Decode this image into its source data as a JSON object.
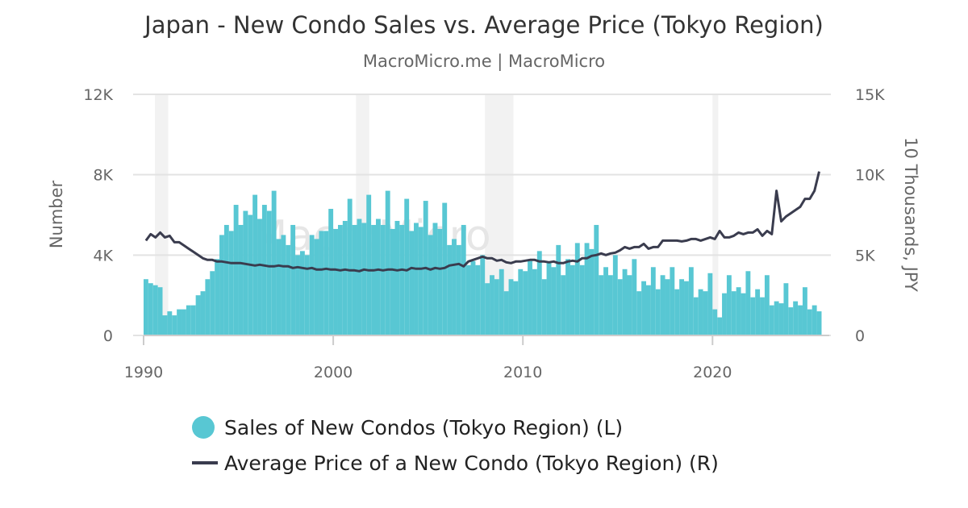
{
  "title": "Japan - New Condo Sales vs. Average Price (Tokyo Region)",
  "subtitle": "MacroMicro.me | MacroMicro",
  "watermark": "MacroMicro",
  "chart_data": {
    "type": "bar+line",
    "title": "Japan - New Condo Sales vs. Average Price (Tokyo Region)",
    "ylabel_left": "Number",
    "ylabel_right": "10 Thousands, JPY",
    "ylim_left": [
      0,
      12000
    ],
    "ylim_right": [
      0,
      15000
    ],
    "yticks_left": [
      "0",
      "4K",
      "8K",
      "12K"
    ],
    "yticks_right": [
      "0",
      "5K",
      "10K",
      "15K"
    ],
    "xlim": [
      1990,
      2025.9
    ],
    "xticks": [
      "1990",
      "2000",
      "2010",
      "2020"
    ],
    "grid": true,
    "legend": "bottom",
    "shaded_periods": [
      [
        1990.6,
        1991.3
      ],
      [
        2001.2,
        2001.9
      ],
      [
        2008.0,
        2009.5
      ],
      [
        2020.0,
        2020.3
      ]
    ],
    "x_start": "1990-Q1",
    "x_frequency": "quarterly",
    "series": [
      {
        "name": "Sales of New Condos (Tokyo Region) (L)",
        "type": "bar",
        "axis": "left",
        "color": "#58c7d3",
        "values": [
          2800,
          2600,
          2500,
          2400,
          1000,
          1200,
          1000,
          1300,
          1300,
          1500,
          1500,
          2000,
          2200,
          2800,
          3200,
          3800,
          5000,
          5500,
          5200,
          6500,
          5500,
          6200,
          6000,
          7000,
          5800,
          6500,
          6200,
          7200,
          4800,
          5000,
          4500,
          5500,
          4000,
          4200,
          4000,
          5000,
          4800,
          5200,
          5200,
          6300,
          5300,
          5500,
          5700,
          6800,
          5500,
          5800,
          5600,
          7000,
          5500,
          5800,
          5500,
          7200,
          5300,
          5700,
          5500,
          6800,
          5200,
          5600,
          5400,
          6700,
          5000,
          5600,
          5300,
          6600,
          4500,
          4800,
          4500,
          5500,
          3500,
          3700,
          3500,
          4000,
          2600,
          3000,
          2800,
          3300,
          2200,
          2800,
          2700,
          3300,
          3200,
          3700,
          3300,
          4200,
          2800,
          3600,
          3400,
          4500,
          3000,
          3800,
          3500,
          4600,
          3500,
          4600,
          4300,
          5500,
          3000,
          3400,
          3000,
          4000,
          2800,
          3300,
          3000,
          3800,
          2200,
          2700,
          2500,
          3400,
          2300,
          3000,
          2800,
          3400,
          2300,
          2800,
          2700,
          3400,
          1900,
          2300,
          2200,
          3100,
          1300,
          900,
          2100,
          3000,
          2200,
          2400,
          2100,
          3200,
          1900,
          2300,
          1900,
          3000,
          1500,
          1700,
          1600,
          2600,
          1400,
          1700,
          1500,
          2400,
          1300,
          1500,
          1200
        ]
      },
      {
        "name": "Average Price of a New Condo (Tokyo Region) (R)",
        "type": "line",
        "axis": "right",
        "color": "#3a3c4e",
        "values": [
          5900,
          6300,
          6100,
          6400,
          6100,
          6200,
          5800,
          5800,
          5600,
          5400,
          5200,
          5000,
          4800,
          4700,
          4700,
          4600,
          4600,
          4550,
          4500,
          4500,
          4500,
          4450,
          4400,
          4350,
          4400,
          4350,
          4300,
          4300,
          4350,
          4300,
          4300,
          4200,
          4250,
          4200,
          4150,
          4200,
          4100,
          4100,
          4150,
          4100,
          4100,
          4050,
          4100,
          4050,
          4050,
          4000,
          4100,
          4050,
          4050,
          4100,
          4050,
          4100,
          4100,
          4050,
          4100,
          4050,
          4200,
          4150,
          4150,
          4200,
          4100,
          4200,
          4150,
          4200,
          4350,
          4400,
          4450,
          4300,
          4600,
          4700,
          4800,
          4900,
          4800,
          4800,
          4650,
          4700,
          4550,
          4500,
          4600,
          4600,
          4650,
          4700,
          4700,
          4600,
          4600,
          4550,
          4600,
          4500,
          4500,
          4600,
          4650,
          4600,
          4800,
          4800,
          4950,
          5000,
          5100,
          5000,
          5100,
          5150,
          5300,
          5500,
          5400,
          5500,
          5500,
          5700,
          5400,
          5500,
          5500,
          5900,
          5900,
          5900,
          5900,
          5850,
          5900,
          6000,
          6000,
          5900,
          6000,
          6100,
          6000,
          6500,
          6100,
          6100,
          6200,
          6400,
          6300,
          6400,
          6400,
          6600,
          6200,
          6500,
          6300,
          9000,
          7100,
          7400,
          7600,
          7800,
          8000,
          8500,
          8500,
          9000,
          10200
        ]
      }
    ]
  }
}
